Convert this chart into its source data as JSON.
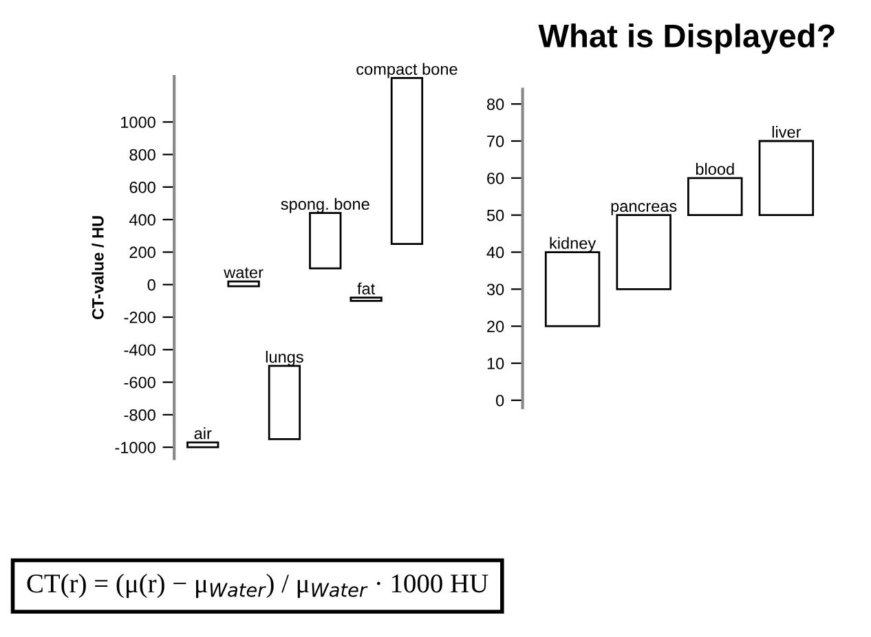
{
  "chart_data": [
    {
      "type": "bar",
      "ylabel": "CT-value / HU",
      "categories": [
        "air",
        "water",
        "lungs",
        "spong. bone",
        "fat",
        "compact bone"
      ],
      "base": [
        -1000,
        -10,
        -950,
        100,
        -100,
        250
      ],
      "values": [
        30,
        30,
        450,
        340,
        20,
        1020
      ],
      "color": "#ffffff",
      "ylim": [
        -1070,
        1280
      ],
      "yticks": [
        -1000,
        -800,
        -600,
        -400,
        -200,
        0,
        200,
        400,
        600,
        800,
        1000
      ],
      "grid": false,
      "annotations": [
        "CT(r) = (μ(r) − μ$_{Water}$) / μ$_{Water}$ · 1000 HU"
      ]
    },
    {
      "type": "bar",
      "title": "What is Displayed?",
      "categories": [
        "kidney",
        "pancreas",
        "blood",
        "liver"
      ],
      "base": [
        20,
        30,
        50,
        50
      ],
      "values": [
        20,
        20,
        10,
        20
      ],
      "color": "#ffffff",
      "ylim": [
        -2,
        84
      ],
      "yticks": [
        0,
        10,
        20,
        30,
        40,
        50,
        60,
        70,
        80
      ],
      "grid": false
    }
  ]
}
